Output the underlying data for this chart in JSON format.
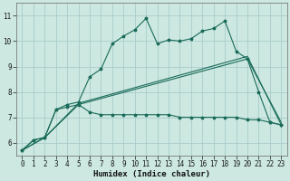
{
  "xlabel": "Humidex (Indice chaleur)",
  "background_color": "#cce8e0",
  "grid_color": "#aacccc",
  "line_color": "#1a6b5a",
  "xlim": [
    -0.5,
    23.5
  ],
  "ylim": [
    5.5,
    11.5
  ],
  "yticks": [
    6,
    7,
    8,
    9,
    10,
    11
  ],
  "xticks": [
    0,
    1,
    2,
    3,
    4,
    5,
    6,
    7,
    8,
    9,
    10,
    11,
    12,
    13,
    14,
    15,
    16,
    17,
    18,
    19,
    20,
    21,
    22,
    23
  ],
  "xlabel_fontsize": 6.5,
  "tick_fontsize": 5.5,
  "series1_x": [
    0,
    1,
    2,
    3,
    4,
    5,
    6,
    7,
    8,
    9,
    10,
    11,
    12,
    13,
    14,
    15,
    16,
    17,
    18,
    19,
    20,
    21,
    22,
    23
  ],
  "series1_y": [
    5.7,
    6.1,
    6.2,
    7.3,
    7.5,
    7.6,
    8.6,
    8.9,
    9.9,
    10.2,
    10.45,
    10.9,
    9.9,
    10.05,
    10.0,
    10.1,
    10.4,
    10.5,
    10.8,
    9.6,
    9.3,
    8.0,
    6.8,
    6.7
  ],
  "series2_x": [
    0,
    1,
    2,
    3,
    4,
    5,
    6,
    7,
    8,
    9,
    10,
    11,
    12,
    13,
    14,
    15,
    16,
    17,
    18,
    19,
    20,
    21,
    22,
    23
  ],
  "series2_y": [
    5.7,
    6.1,
    6.2,
    7.3,
    7.4,
    7.5,
    7.2,
    7.1,
    7.1,
    7.1,
    7.1,
    7.1,
    7.1,
    7.1,
    7.0,
    7.0,
    7.0,
    7.0,
    7.0,
    7.0,
    6.9,
    6.9,
    6.8,
    6.7
  ],
  "series3_x": [
    0,
    2,
    5,
    20,
    23
  ],
  "series3_y": [
    5.7,
    6.2,
    7.5,
    9.3,
    6.8
  ],
  "series4_x": [
    0,
    2,
    5,
    20,
    23
  ],
  "series4_y": [
    5.7,
    6.2,
    7.55,
    9.4,
    6.7
  ]
}
